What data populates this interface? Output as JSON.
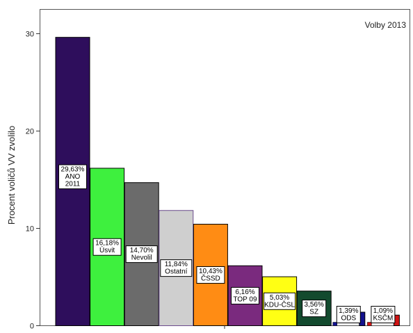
{
  "chart_data": {
    "type": "bar",
    "note": "Volby 2013",
    "title": "",
    "xlabel": "",
    "ylabel": "Procent voličů VV zvolilo",
    "ylim": [
      0,
      32.5
    ],
    "yticks": [
      "0",
      "10",
      "20",
      "30"
    ],
    "grid": false,
    "categories": [
      "ANO 2011",
      "Úsvit",
      "Nevolil",
      "Ostatní",
      "ČSSD",
      "TOP 09",
      "KDU-ČSL",
      "SZ",
      "ODS",
      "KSČM"
    ],
    "values": [
      29.63,
      16.18,
      14.7,
      11.84,
      10.43,
      6.16,
      5.03,
      3.56,
      1.39,
      1.09
    ],
    "data_labels": [
      [
        "29,63%",
        "ANO",
        "2011"
      ],
      [
        "16,18%",
        "Úsvit"
      ],
      [
        "14,70%",
        "Nevolil"
      ],
      [
        "11,84%",
        "Ostatní"
      ],
      [
        "10,43%",
        "ČSSD"
      ],
      [
        "6,16%",
        "TOP 09"
      ],
      [
        "5,03%",
        "KDU-ČSL"
      ],
      [
        "3,56%",
        "SZ"
      ],
      [
        "1,39%",
        "ODS"
      ],
      [
        "1,09%",
        "KSČM"
      ]
    ],
    "bar_colors": [
      "#2e0e5c",
      "#3ef03e",
      "#6b6b6b",
      "#cfcfcf",
      "#ff8c14",
      "#7a2a7e",
      "#ffff14",
      "#134a2e",
      "#13128e",
      "#d01414"
    ],
    "bar_outlines": [
      "#000000",
      "#000000",
      "#000000",
      "#6a4a8c",
      "#000000",
      "#000000",
      "#000000",
      "#000000",
      "#000000",
      "#000000"
    ],
    "thin_bars": [
      false,
      false,
      false,
      false,
      false,
      false,
      false,
      false,
      true,
      true
    ]
  }
}
